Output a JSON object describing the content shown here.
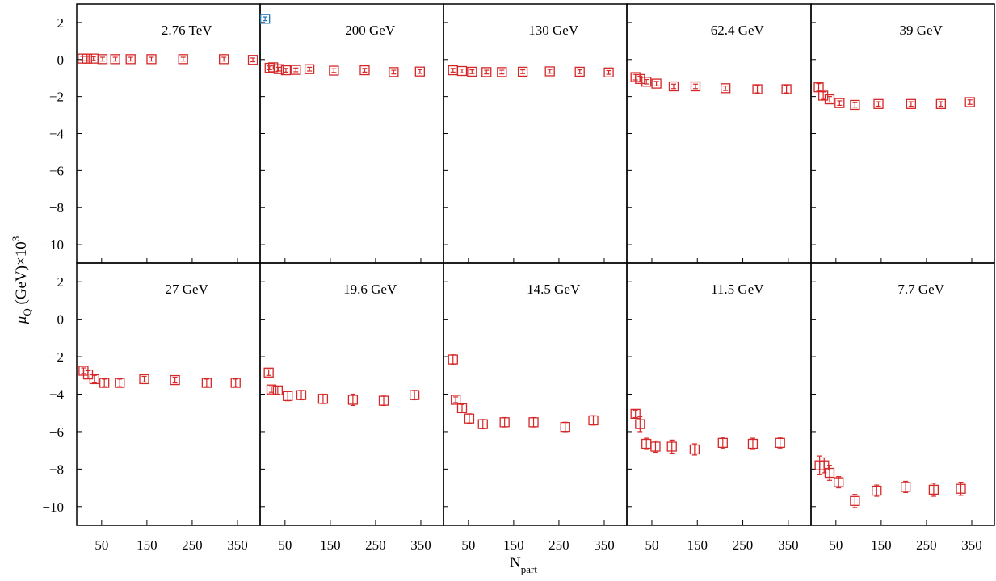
{
  "chart_data": {
    "type": "scatter",
    "layout": "2x5 panel grid, shared axes",
    "xlabel": "N",
    "xlabel_sub": "part",
    "ylabel_main": "μ",
    "ylabel_sub": "Q",
    "ylabel_rest": " (GeV)×10",
    "ylabel_sup": "3",
    "x_ticks": [
      "50",
      "150",
      "250",
      "350"
    ],
    "x_tick_values": [
      50,
      150,
      250,
      350
    ],
    "y_ticks": [
      "2",
      "0",
      "−2",
      "−4",
      "−6",
      "−8",
      "−10"
    ],
    "y_tick_values": [
      2,
      0,
      -2,
      -4,
      -6,
      -8,
      -10
    ],
    "xlim": [
      -5,
      400
    ],
    "ylim": [
      -11,
      3
    ],
    "grid": false,
    "marker": "open square with error bars",
    "marker_color": "#d62728",
    "highlight_color": "#1f77b4",
    "panels": [
      {
        "title": "2.76 TeV",
        "x": [
          8,
          18,
          32,
          52,
          80,
          114,
          160,
          230,
          320,
          384
        ],
        "y": [
          0.05,
          0.05,
          0.05,
          0.02,
          0.02,
          0.02,
          0.02,
          0.02,
          0.02,
          -0.02
        ],
        "err": [
          0.12,
          0.12,
          0.1,
          0.1,
          0.1,
          0.1,
          0.1,
          0.1,
          0.1,
          0.1
        ]
      },
      {
        "title": "200 GeV",
        "x": [
          6,
          16,
          24,
          36,
          52,
          74,
          104,
          158,
          226,
          290,
          348
        ],
        "y": [
          2.2,
          -0.45,
          -0.42,
          -0.52,
          -0.58,
          -0.56,
          -0.52,
          -0.6,
          -0.58,
          -0.68,
          -0.65
        ],
        "err": [
          0.1,
          0.1,
          0.1,
          0.1,
          0.1,
          0.1,
          0.1,
          0.1,
          0.1,
          0.1,
          0.1
        ],
        "highlight": [
          true,
          false,
          false,
          false,
          false,
          false,
          false,
          false,
          false,
          false,
          false
        ]
      },
      {
        "title": "130 GeV",
        "x": [
          16,
          36,
          58,
          90,
          124,
          170,
          230,
          296,
          360
        ],
        "y": [
          -0.58,
          -0.62,
          -0.66,
          -0.68,
          -0.68,
          -0.66,
          -0.64,
          -0.66,
          -0.7
        ],
        "err": [
          0.1,
          0.1,
          0.1,
          0.1,
          0.1,
          0.1,
          0.1,
          0.1,
          0.1
        ]
      },
      {
        "title": "62.4 GeV",
        "x": [
          14,
          24,
          38,
          60,
          98,
          146,
          212,
          282,
          346
        ],
        "y": [
          -0.95,
          -1.05,
          -1.2,
          -1.3,
          -1.45,
          -1.45,
          -1.55,
          -1.6,
          -1.6
        ],
        "err": [
          0.15,
          0.15,
          0.12,
          0.12,
          0.12,
          0.12,
          0.12,
          0.2,
          0.2
        ]
      },
      {
        "title": "39 GeV",
        "x": [
          12,
          22,
          36,
          58,
          92,
          144,
          216,
          282,
          346
        ],
        "y": [
          -1.5,
          -1.95,
          -2.15,
          -2.35,
          -2.45,
          -2.4,
          -2.4,
          -2.4,
          -2.3
        ],
        "err": [
          0.2,
          0.2,
          0.15,
          0.12,
          0.12,
          0.12,
          0.12,
          0.12,
          0.12
        ]
      },
      {
        "title": "27 GeV",
        "x": [
          10,
          20,
          34,
          56,
          90,
          144,
          212,
          282,
          346
        ],
        "y": [
          -2.75,
          -2.95,
          -3.2,
          -3.4,
          -3.4,
          -3.2,
          -3.25,
          -3.4,
          -3.4
        ],
        "err": [
          0.15,
          0.2,
          0.2,
          0.2,
          0.2,
          0.15,
          0.15,
          0.2,
          0.2
        ]
      },
      {
        "title": "19.6 GeV",
        "x": [
          14,
          20,
          34,
          56,
          86,
          134,
          200,
          268,
          336
        ],
        "y": [
          -2.85,
          -3.75,
          -3.8,
          -4.1,
          -4.05,
          -4.25,
          -4.3,
          -4.35,
          -4.05
        ],
        "err": [
          0.15,
          0.15,
          0.2,
          0.25,
          0.25,
          0.25,
          0.3,
          0.25,
          0.25
        ]
      },
      {
        "title": "14.5 GeV",
        "x": [
          16,
          22,
          36,
          52,
          82,
          130,
          194,
          264,
          326
        ],
        "y": [
          -2.15,
          -4.3,
          -4.75,
          -5.3,
          -5.6,
          -5.5,
          -5.5,
          -5.75,
          -5.4
        ],
        "err": [
          0.25,
          0.15,
          0.2,
          0.25,
          0.25,
          0.25,
          0.25,
          0.25,
          0.25
        ]
      },
      {
        "title": "11.5 GeV",
        "x": [
          14,
          24,
          38,
          58,
          94,
          144,
          206,
          272,
          332
        ],
        "y": [
          -5.05,
          -5.6,
          -6.65,
          -6.8,
          -6.8,
          -6.95,
          -6.6,
          -6.65,
          -6.6
        ],
        "err": [
          0.2,
          0.4,
          0.3,
          0.3,
          0.35,
          0.3,
          0.3,
          0.3,
          0.3
        ]
      },
      {
        "title": "7.7 GeV",
        "x": [
          14,
          24,
          36,
          56,
          92,
          140,
          204,
          266,
          326
        ],
        "y": [
          -7.8,
          -7.8,
          -8.2,
          -8.7,
          -9.7,
          -9.15,
          -8.95,
          -9.1,
          -9.05
        ],
        "err": [
          0.5,
          0.4,
          0.4,
          0.3,
          0.35,
          0.3,
          0.3,
          0.35,
          0.35
        ]
      }
    ]
  }
}
